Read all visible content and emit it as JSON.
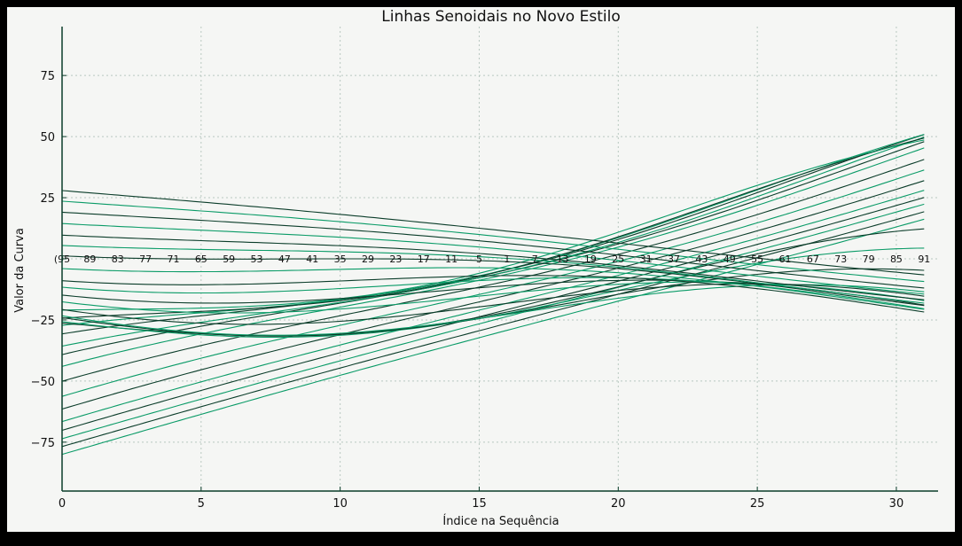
{
  "chart_data": {
    "type": "line",
    "title": "Linhas Senoidais no Novo Estilo",
    "xlabel": "Índice na Sequência",
    "ylabel": "Valor da Curva",
    "xlim": [
      0,
      31.5
    ],
    "ylim": [
      -95,
      95
    ],
    "x_ticks": [
      0,
      5,
      10,
      15,
      20,
      25,
      30
    ],
    "y_ticks": [
      -75,
      -50,
      -25,
      0,
      25,
      50,
      75
    ],
    "y_tick_labels": [
      "−75",
      "−50",
      "−25",
      "0",
      "25",
      "50",
      "75"
    ],
    "grid": true,
    "legend": "none",
    "line_colors": [
      "#0a9b67",
      "#0b3d2a"
    ],
    "x": [
      0,
      1,
      2,
      3,
      4,
      5,
      6,
      7,
      8,
      9,
      10,
      11,
      12,
      13,
      14,
      15,
      16,
      17,
      18,
      19,
      20,
      21,
      22,
      23,
      24,
      25,
      26,
      27,
      28,
      29,
      30,
      31
    ],
    "curve_family": {
      "count": 32,
      "offsets": [
        -80,
        -77,
        -74,
        -71,
        -68,
        -64,
        -60,
        -55,
        -50,
        -46,
        -43,
        -38,
        -34,
        -30,
        -25,
        -28,
        -25,
        -21,
        -18,
        -14,
        -10,
        -7,
        -4,
        -2,
        2,
        6,
        9,
        12,
        16,
        20,
        24,
        28
      ],
      "slopes": [
        3.3,
        3.3,
        3.3,
        3.3,
        3.3,
        3.3,
        3.3,
        3.25,
        3.2,
        3.1,
        3.0,
        2.8,
        2.6,
        2.35,
        2.1,
        1.6,
        1.0,
        0.3,
        -0.3,
        -0.5,
        -0.7,
        -0.85,
        -1.0,
        -1.1,
        -1.2,
        -1.3,
        -1.4,
        -1.5,
        -1.6,
        -1.7,
        -1.8,
        -1.9
      ],
      "amplitudes": [
        1,
        1,
        1,
        1.5,
        2,
        3,
        4,
        5,
        6,
        7,
        8,
        9,
        10,
        11,
        12,
        12,
        12,
        12,
        12,
        11,
        10,
        9,
        8,
        7,
        6,
        5,
        4,
        3,
        2.5,
        2,
        1.5,
        1
      ],
      "period": 40,
      "phases": [
        0,
        0.2,
        0.4,
        0.6,
        0.8,
        1.0,
        1.2,
        1.4,
        1.6,
        1.8,
        2.0,
        2.2,
        2.4,
        2.6,
        2.8,
        3.0,
        3.2,
        3.4,
        3.6,
        3.8,
        4.0,
        4.2,
        4.4,
        4.6,
        4.8,
        5.0,
        5.2,
        5.4,
        5.6,
        5.8,
        6.0,
        6.2
      ]
    },
    "annotations": {
      "y": 0,
      "labels": [
        {
          "x": 0,
          "text": "(95"
        },
        {
          "x": 1,
          "text": "89"
        },
        {
          "x": 2,
          "text": "83"
        },
        {
          "x": 3,
          "text": "77"
        },
        {
          "x": 4,
          "text": "71"
        },
        {
          "x": 5,
          "text": "65"
        },
        {
          "x": 6,
          "text": "59"
        },
        {
          "x": 7,
          "text": "53"
        },
        {
          "x": 8,
          "text": "47"
        },
        {
          "x": 9,
          "text": "41"
        },
        {
          "x": 10,
          "text": "35"
        },
        {
          "x": 11,
          "text": "29"
        },
        {
          "x": 12,
          "text": "23"
        },
        {
          "x": 13,
          "text": "17"
        },
        {
          "x": 14,
          "text": "11"
        },
        {
          "x": 15,
          "text": "5"
        },
        {
          "x": 16,
          "text": "1"
        },
        {
          "x": 17,
          "text": "7"
        },
        {
          "x": 18,
          "text": "13"
        },
        {
          "x": 19,
          "text": "19"
        },
        {
          "x": 20,
          "text": "25"
        },
        {
          "x": 21,
          "text": "31"
        },
        {
          "x": 22,
          "text": "37"
        },
        {
          "x": 23,
          "text": "43"
        },
        {
          "x": 24,
          "text": "49"
        },
        {
          "x": 25,
          "text": "55"
        },
        {
          "x": 26,
          "text": "61"
        },
        {
          "x": 27,
          "text": "67"
        },
        {
          "x": 28,
          "text": "73"
        },
        {
          "x": 29,
          "text": "79"
        },
        {
          "x": 30,
          "text": "85"
        },
        {
          "x": 31,
          "text": "91"
        }
      ]
    }
  }
}
